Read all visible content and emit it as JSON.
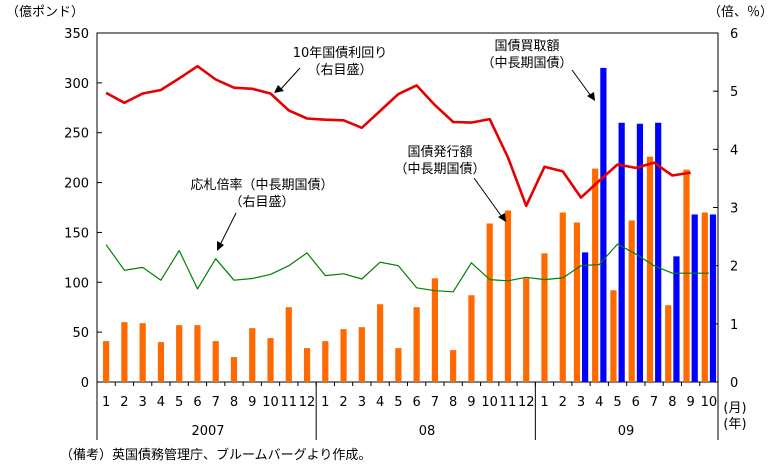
{
  "chart_data": {
    "type": "bar",
    "left_axis_unit": "（億ポンド）",
    "right_axis_unit": "（倍、％）",
    "left_ylim": [
      0,
      350
    ],
    "left_ticks": [
      "0",
      "50",
      "100",
      "150",
      "200",
      "250",
      "300",
      "350"
    ],
    "right_ylim": [
      0,
      6
    ],
    "right_ticks": [
      "0",
      "1",
      "2",
      "3",
      "4",
      "5",
      "6"
    ],
    "month_labels": [
      "1",
      "2",
      "3",
      "4",
      "5",
      "6",
      "7",
      "8",
      "9",
      "10",
      "11",
      "12",
      "1",
      "2",
      "3",
      "4",
      "5",
      "6",
      "7",
      "8",
      "9",
      "10",
      "11",
      "12",
      "1",
      "2",
      "3",
      "4",
      "5",
      "6",
      "7",
      "8",
      "9",
      "10"
    ],
    "year_labels": [
      "2007",
      "08",
      "09"
    ],
    "month_unit": "(月)",
    "year_unit": "(年)",
    "series": [
      {
        "name": "国債発行額（中長期国債）",
        "kind": "bar",
        "axis": "left",
        "color": "#ff6a00",
        "values": [
          41,
          60,
          59,
          40,
          57,
          57,
          41,
          25,
          54,
          44,
          75,
          34,
          41,
          53,
          55,
          78,
          34,
          75,
          104,
          32,
          87,
          159,
          172,
          104,
          129,
          170,
          160,
          214,
          92,
          162,
          226,
          77,
          213,
          170
        ]
      },
      {
        "name": "国債買取額（中長期国債）",
        "kind": "bar",
        "axis": "left",
        "color": "#0000ff",
        "values": [
          null,
          null,
          null,
          null,
          null,
          null,
          null,
          null,
          null,
          null,
          null,
          null,
          null,
          null,
          null,
          null,
          null,
          null,
          null,
          null,
          null,
          null,
          null,
          null,
          null,
          null,
          130,
          315,
          260,
          259,
          260,
          126,
          168,
          168
        ]
      },
      {
        "name": "10年国債利回り（右目盛）",
        "kind": "line",
        "axis": "right",
        "color": "#e60000",
        "values": [
          4.97,
          4.8,
          4.96,
          5.02,
          5.22,
          5.43,
          5.2,
          5.06,
          5.04,
          4.96,
          4.67,
          4.53,
          4.51,
          4.5,
          4.37,
          4.66,
          4.95,
          5.1,
          4.76,
          4.47,
          4.46,
          4.52,
          3.86,
          3.03,
          3.7,
          3.62,
          3.17,
          3.46,
          3.74,
          3.68,
          3.77,
          3.55,
          3.6
        ]
      },
      {
        "name": "応札倍率（中長期国債）（右目盛）",
        "kind": "line",
        "axis": "right",
        "color": "#008000",
        "values": [
          2.36,
          1.92,
          1.97,
          1.75,
          2.26,
          1.6,
          2.12,
          1.75,
          1.78,
          1.85,
          2.0,
          2.22,
          1.83,
          1.86,
          1.77,
          2.06,
          2.0,
          1.62,
          1.57,
          1.55,
          2.05,
          1.76,
          1.74,
          1.8,
          1.76,
          1.79,
          2.0,
          2.02,
          2.37,
          2.2,
          2.0,
          1.87,
          1.87,
          1.87
        ]
      }
    ],
    "annotations": [
      {
        "key": "yield",
        "lines": [
          "10年国債利回り",
          "（右目盛）"
        ]
      },
      {
        "key": "purchase",
        "lines": [
          "国債買取額",
          "（中長期国債）"
        ]
      },
      {
        "key": "issuance",
        "lines": [
          "国債発行額",
          "（中長期国債）"
        ]
      },
      {
        "key": "cover",
        "lines": [
          "応札倍率（中長期国債）",
          "（右目盛）"
        ]
      }
    ]
  },
  "note": "（備考）英国債務管理庁、ブルームバーグより作成。"
}
